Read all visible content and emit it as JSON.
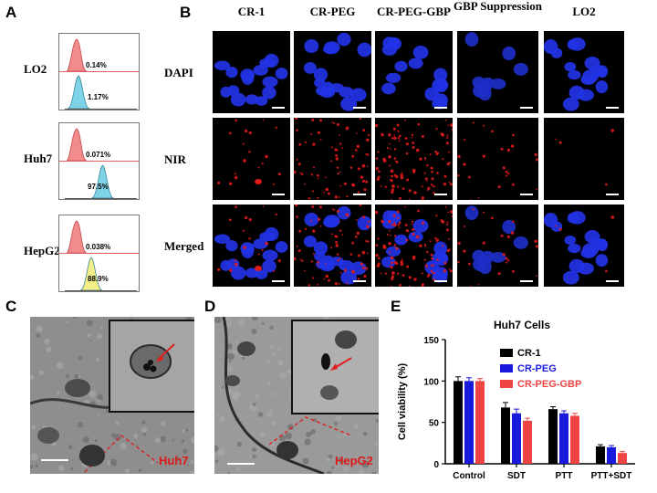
{
  "panels": {
    "a": "A",
    "b": "B",
    "c": "C",
    "d": "D",
    "e": "E"
  },
  "flow": {
    "rows": [
      {
        "name": "LO2",
        "upper": "0.14%",
        "lower": "1.17%",
        "colors": [
          "#f28b8b",
          "#7fd3e6"
        ],
        "level": 0.02
      },
      {
        "name": "Huh7",
        "upper": "0.071%",
        "lower": "97.5%",
        "colors": [
          "#f28b8b",
          "#7fd3e6"
        ],
        "level": 0.55
      },
      {
        "name": "HepG2",
        "upper": "0.038%",
        "lower": "88.9%",
        "colors": [
          "#f28b8b",
          "#f4ee86"
        ],
        "level": 0.3
      }
    ]
  },
  "microscopy": {
    "columns": [
      "CR-1",
      "CR-PEG",
      "CR-PEG-GBP",
      "GBP Suppression",
      "LO2"
    ],
    "rows": [
      "DAPI",
      "NIR",
      "Merged"
    ]
  },
  "em": {
    "left_label": "Huh7",
    "right_label": "HepG2"
  },
  "chart_data": {
    "type": "bar",
    "title": "Huh7 Cells",
    "ylabel": "Cell viability (%)",
    "xlabel": "",
    "categories": [
      "Control",
      "SDT",
      "PTT",
      "PTT+SDT"
    ],
    "ylim": [
      0,
      150
    ],
    "yticks": [
      0,
      50,
      100,
      150
    ],
    "legend_position": "top-right",
    "series": [
      {
        "name": "CR-1",
        "color": "#000000",
        "values": [
          100,
          68,
          66,
          21
        ],
        "errors": [
          5,
          6,
          3,
          2
        ]
      },
      {
        "name": "CR-PEG",
        "color": "#1a1adc",
        "values": [
          100,
          61,
          61,
          20
        ],
        "errors": [
          4,
          5,
          3,
          2
        ]
      },
      {
        "name": "CR-PEG-GBP",
        "color": "#ee4444",
        "values": [
          100,
          52,
          58,
          13
        ],
        "errors": [
          3,
          3,
          3,
          2
        ]
      }
    ]
  }
}
